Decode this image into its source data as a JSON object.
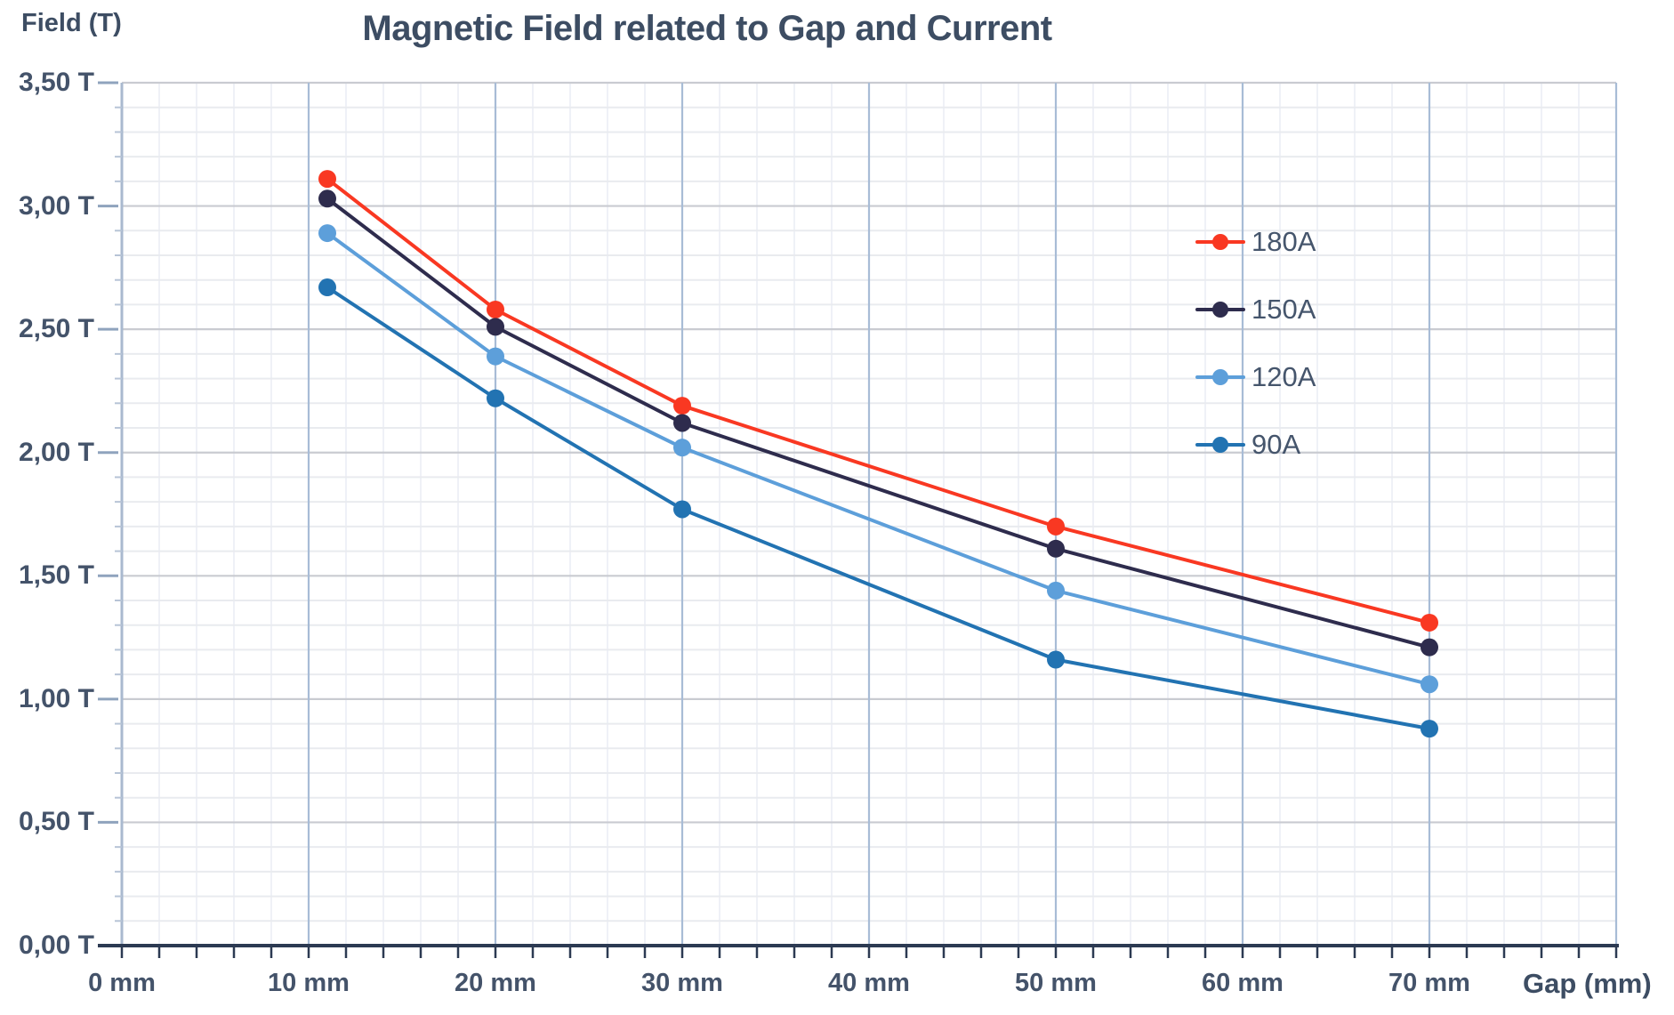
{
  "header": {
    "title": "Magnetic Field related to Gap and Current"
  },
  "axes": {
    "y_title": "Field (T)",
    "x_title": "Gap (mm)"
  },
  "colors": {
    "background": "#ffffff",
    "title_text": "#3d4d63",
    "tick_text": "#44536a",
    "legend_text": "#45556c",
    "x_axis": "#2c3a52",
    "y_axis": "#a9b9cf",
    "y_major_tick": "#8fa3bd",
    "y_minor_tick": "#b7c4d6",
    "grid_minor_h": "#e9ebef",
    "grid_major_h": "#c9cbd1",
    "grid_minor_v": "#eff1f7",
    "grid_major_v": "#a8bcd6"
  },
  "chart_data": {
    "type": "line",
    "title": "Magnetic Field related to Gap and Current",
    "xlabel": "Gap (mm)",
    "ylabel": "Field (T)",
    "xlim": [
      0,
      80
    ],
    "ylim": [
      0,
      3.5
    ],
    "x_minor_step": 2,
    "y_minor_step": 0.1,
    "grid": true,
    "legend_position": "upper-right",
    "x": [
      11,
      20,
      30,
      50,
      70
    ],
    "series": [
      {
        "name": "180A",
        "color": "#f93822",
        "values": [
          3.11,
          2.58,
          2.19,
          1.7,
          1.31
        ]
      },
      {
        "name": "150A",
        "color": "#2e2c4d",
        "values": [
          3.03,
          2.51,
          2.12,
          1.61,
          1.21
        ]
      },
      {
        "name": "120A",
        "color": "#5d9fda",
        "values": [
          2.89,
          2.39,
          2.02,
          1.44,
          1.06
        ]
      },
      {
        "name": "90A",
        "color": "#2273b2",
        "values": [
          2.67,
          2.22,
          1.77,
          1.16,
          0.88
        ]
      }
    ],
    "x_ticks": [
      {
        "value": 0,
        "label": "0 mm"
      },
      {
        "value": 10,
        "label": "10 mm"
      },
      {
        "value": 20,
        "label": "20 mm"
      },
      {
        "value": 30,
        "label": "30 mm"
      },
      {
        "value": 40,
        "label": "40 mm"
      },
      {
        "value": 50,
        "label": "50 mm"
      },
      {
        "value": 60,
        "label": "60 mm"
      },
      {
        "value": 70,
        "label": "70 mm"
      }
    ],
    "y_ticks": [
      {
        "value": 0.0,
        "label": "0,00 T"
      },
      {
        "value": 0.5,
        "label": "0,50 T"
      },
      {
        "value": 1.0,
        "label": "1,00 T"
      },
      {
        "value": 1.5,
        "label": "1,50 T"
      },
      {
        "value": 2.0,
        "label": "2,00 T"
      },
      {
        "value": 2.5,
        "label": "2,50 T"
      },
      {
        "value": 3.0,
        "label": "3,00 T"
      },
      {
        "value": 3.5,
        "label": "3,50 T"
      }
    ]
  }
}
